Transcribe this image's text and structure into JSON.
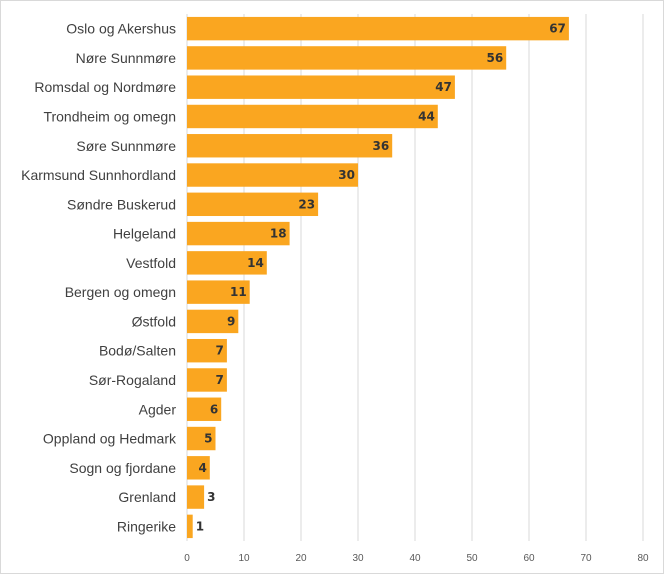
{
  "chart_data": {
    "type": "bar",
    "orientation": "horizontal",
    "categories": [
      "Oslo og Akershus",
      "Nøre Sunnmøre",
      "Romsdal og Nordmøre",
      "Trondheim og omegn",
      "Søre Sunnmøre",
      "Karmsund Sunnhordland",
      "Søndre Buskerud",
      "Helgeland",
      "Vestfold",
      "Bergen og omegn",
      "Østfold",
      "Bodø/Salten",
      "Sør-Rogaland",
      "Agder",
      "Oppland og Hedmark",
      "Sogn og fjordane",
      "Grenland",
      "Ringerike"
    ],
    "values": [
      67,
      56,
      47,
      44,
      36,
      30,
      23,
      18,
      14,
      11,
      9,
      7,
      7,
      6,
      5,
      4,
      3,
      1
    ],
    "x_ticks": [
      "0",
      "10",
      "20",
      "30",
      "40",
      "50",
      "60",
      "70",
      "80"
    ],
    "xlim": [
      0,
      80
    ],
    "grid": true,
    "data_labels": true,
    "legend": "none",
    "colors": {
      "bar": "#FAA620",
      "grid": "#d9d9d9",
      "text": "#404040"
    }
  }
}
